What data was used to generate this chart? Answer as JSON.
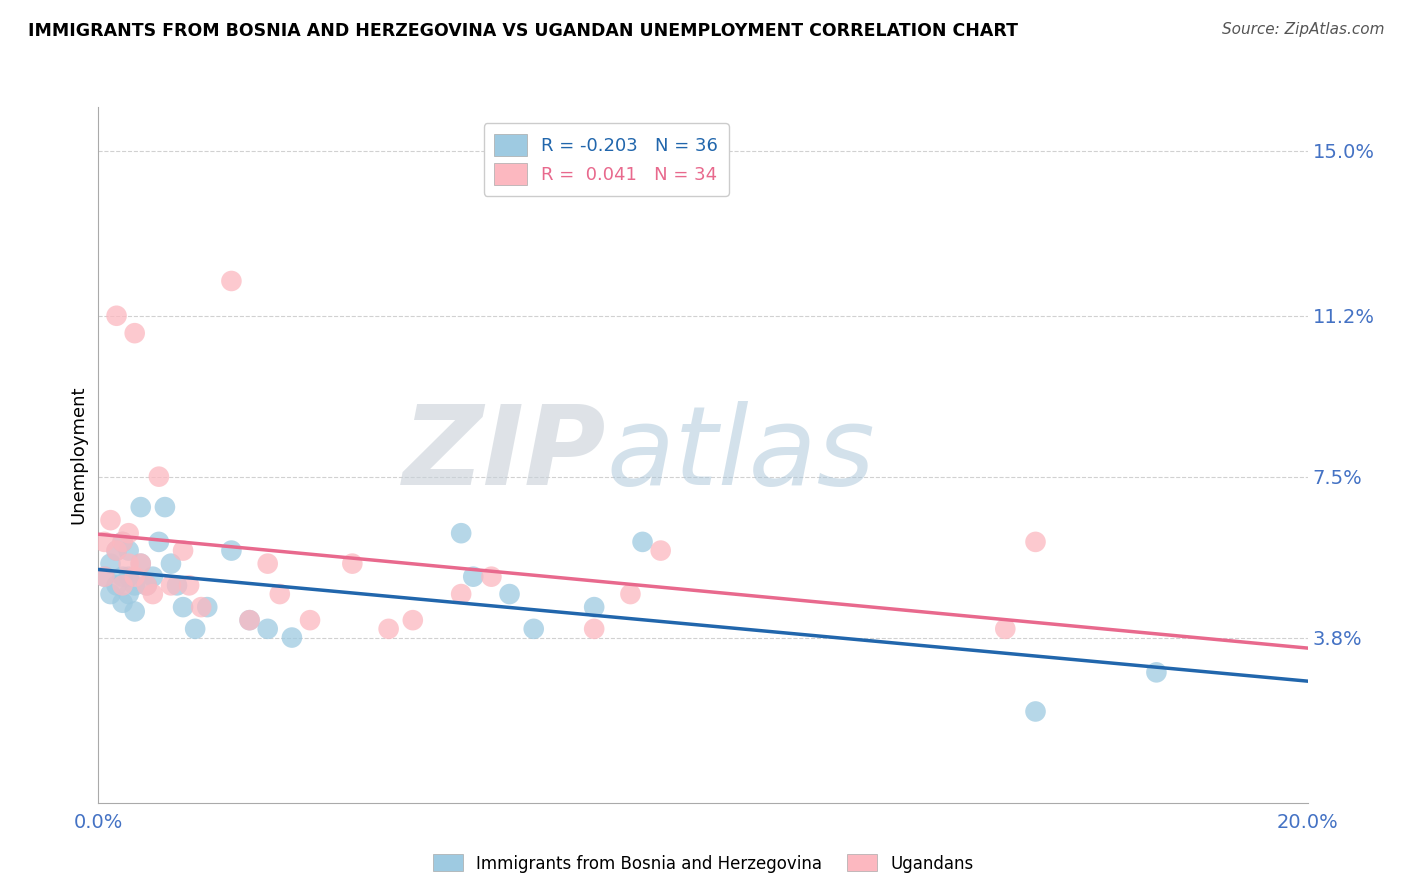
{
  "title": "IMMIGRANTS FROM BOSNIA AND HERZEGOVINA VS UGANDAN UNEMPLOYMENT CORRELATION CHART",
  "source": "Source: ZipAtlas.com",
  "ylabel": "Unemployment",
  "xlim": [
    0.0,
    0.2
  ],
  "ylim": [
    0.0,
    0.16
  ],
  "yticks": [
    0.038,
    0.075,
    0.112,
    0.15
  ],
  "ytick_labels": [
    "3.8%",
    "7.5%",
    "11.2%",
    "15.0%"
  ],
  "xtick_positions": [
    0.0,
    0.05,
    0.1,
    0.15,
    0.2
  ],
  "legend_r_blue": "R = -0.203",
  "legend_n_blue": "N = 36",
  "legend_r_pink": "R =  0.041",
  "legend_n_pink": "N = 34",
  "blue_color": "#9ecae1",
  "pink_color": "#fcb8c0",
  "blue_line_color": "#2166ac",
  "pink_line_color": "#e8698d",
  "watermark_zip": "ZIP",
  "watermark_atlas": "atlas",
  "blue_label": "Immigrants from Bosnia and Herzegovina",
  "pink_label": "Ugandans",
  "background_color": "#ffffff",
  "grid_color": "#cccccc",
  "tick_label_color": "#4472c4",
  "blue_scatter_x": [
    0.001,
    0.002,
    0.002,
    0.003,
    0.003,
    0.004,
    0.004,
    0.004,
    0.005,
    0.005,
    0.005,
    0.006,
    0.006,
    0.007,
    0.007,
    0.008,
    0.009,
    0.01,
    0.011,
    0.012,
    0.013,
    0.014,
    0.016,
    0.018,
    0.022,
    0.025,
    0.028,
    0.032,
    0.06,
    0.062,
    0.068,
    0.072,
    0.082,
    0.09,
    0.155,
    0.175
  ],
  "blue_scatter_y": [
    0.052,
    0.048,
    0.055,
    0.05,
    0.058,
    0.046,
    0.052,
    0.06,
    0.048,
    0.052,
    0.058,
    0.044,
    0.05,
    0.068,
    0.055,
    0.05,
    0.052,
    0.06,
    0.068,
    0.055,
    0.05,
    0.045,
    0.04,
    0.045,
    0.058,
    0.042,
    0.04,
    0.038,
    0.062,
    0.052,
    0.048,
    0.04,
    0.045,
    0.06,
    0.021,
    0.03
  ],
  "pink_scatter_x": [
    0.001,
    0.001,
    0.002,
    0.003,
    0.003,
    0.004,
    0.004,
    0.005,
    0.005,
    0.006,
    0.006,
    0.007,
    0.008,
    0.009,
    0.01,
    0.012,
    0.014,
    0.015,
    0.017,
    0.022,
    0.025,
    0.028,
    0.03,
    0.035,
    0.042,
    0.048,
    0.052,
    0.06,
    0.065,
    0.082,
    0.088,
    0.093,
    0.15,
    0.155
  ],
  "pink_scatter_y": [
    0.052,
    0.06,
    0.065,
    0.058,
    0.112,
    0.05,
    0.06,
    0.055,
    0.062,
    0.052,
    0.108,
    0.055,
    0.05,
    0.048,
    0.075,
    0.05,
    0.058,
    0.05,
    0.045,
    0.12,
    0.042,
    0.055,
    0.048,
    0.042,
    0.055,
    0.04,
    0.042,
    0.048,
    0.052,
    0.04,
    0.048,
    0.058,
    0.04,
    0.06
  ]
}
